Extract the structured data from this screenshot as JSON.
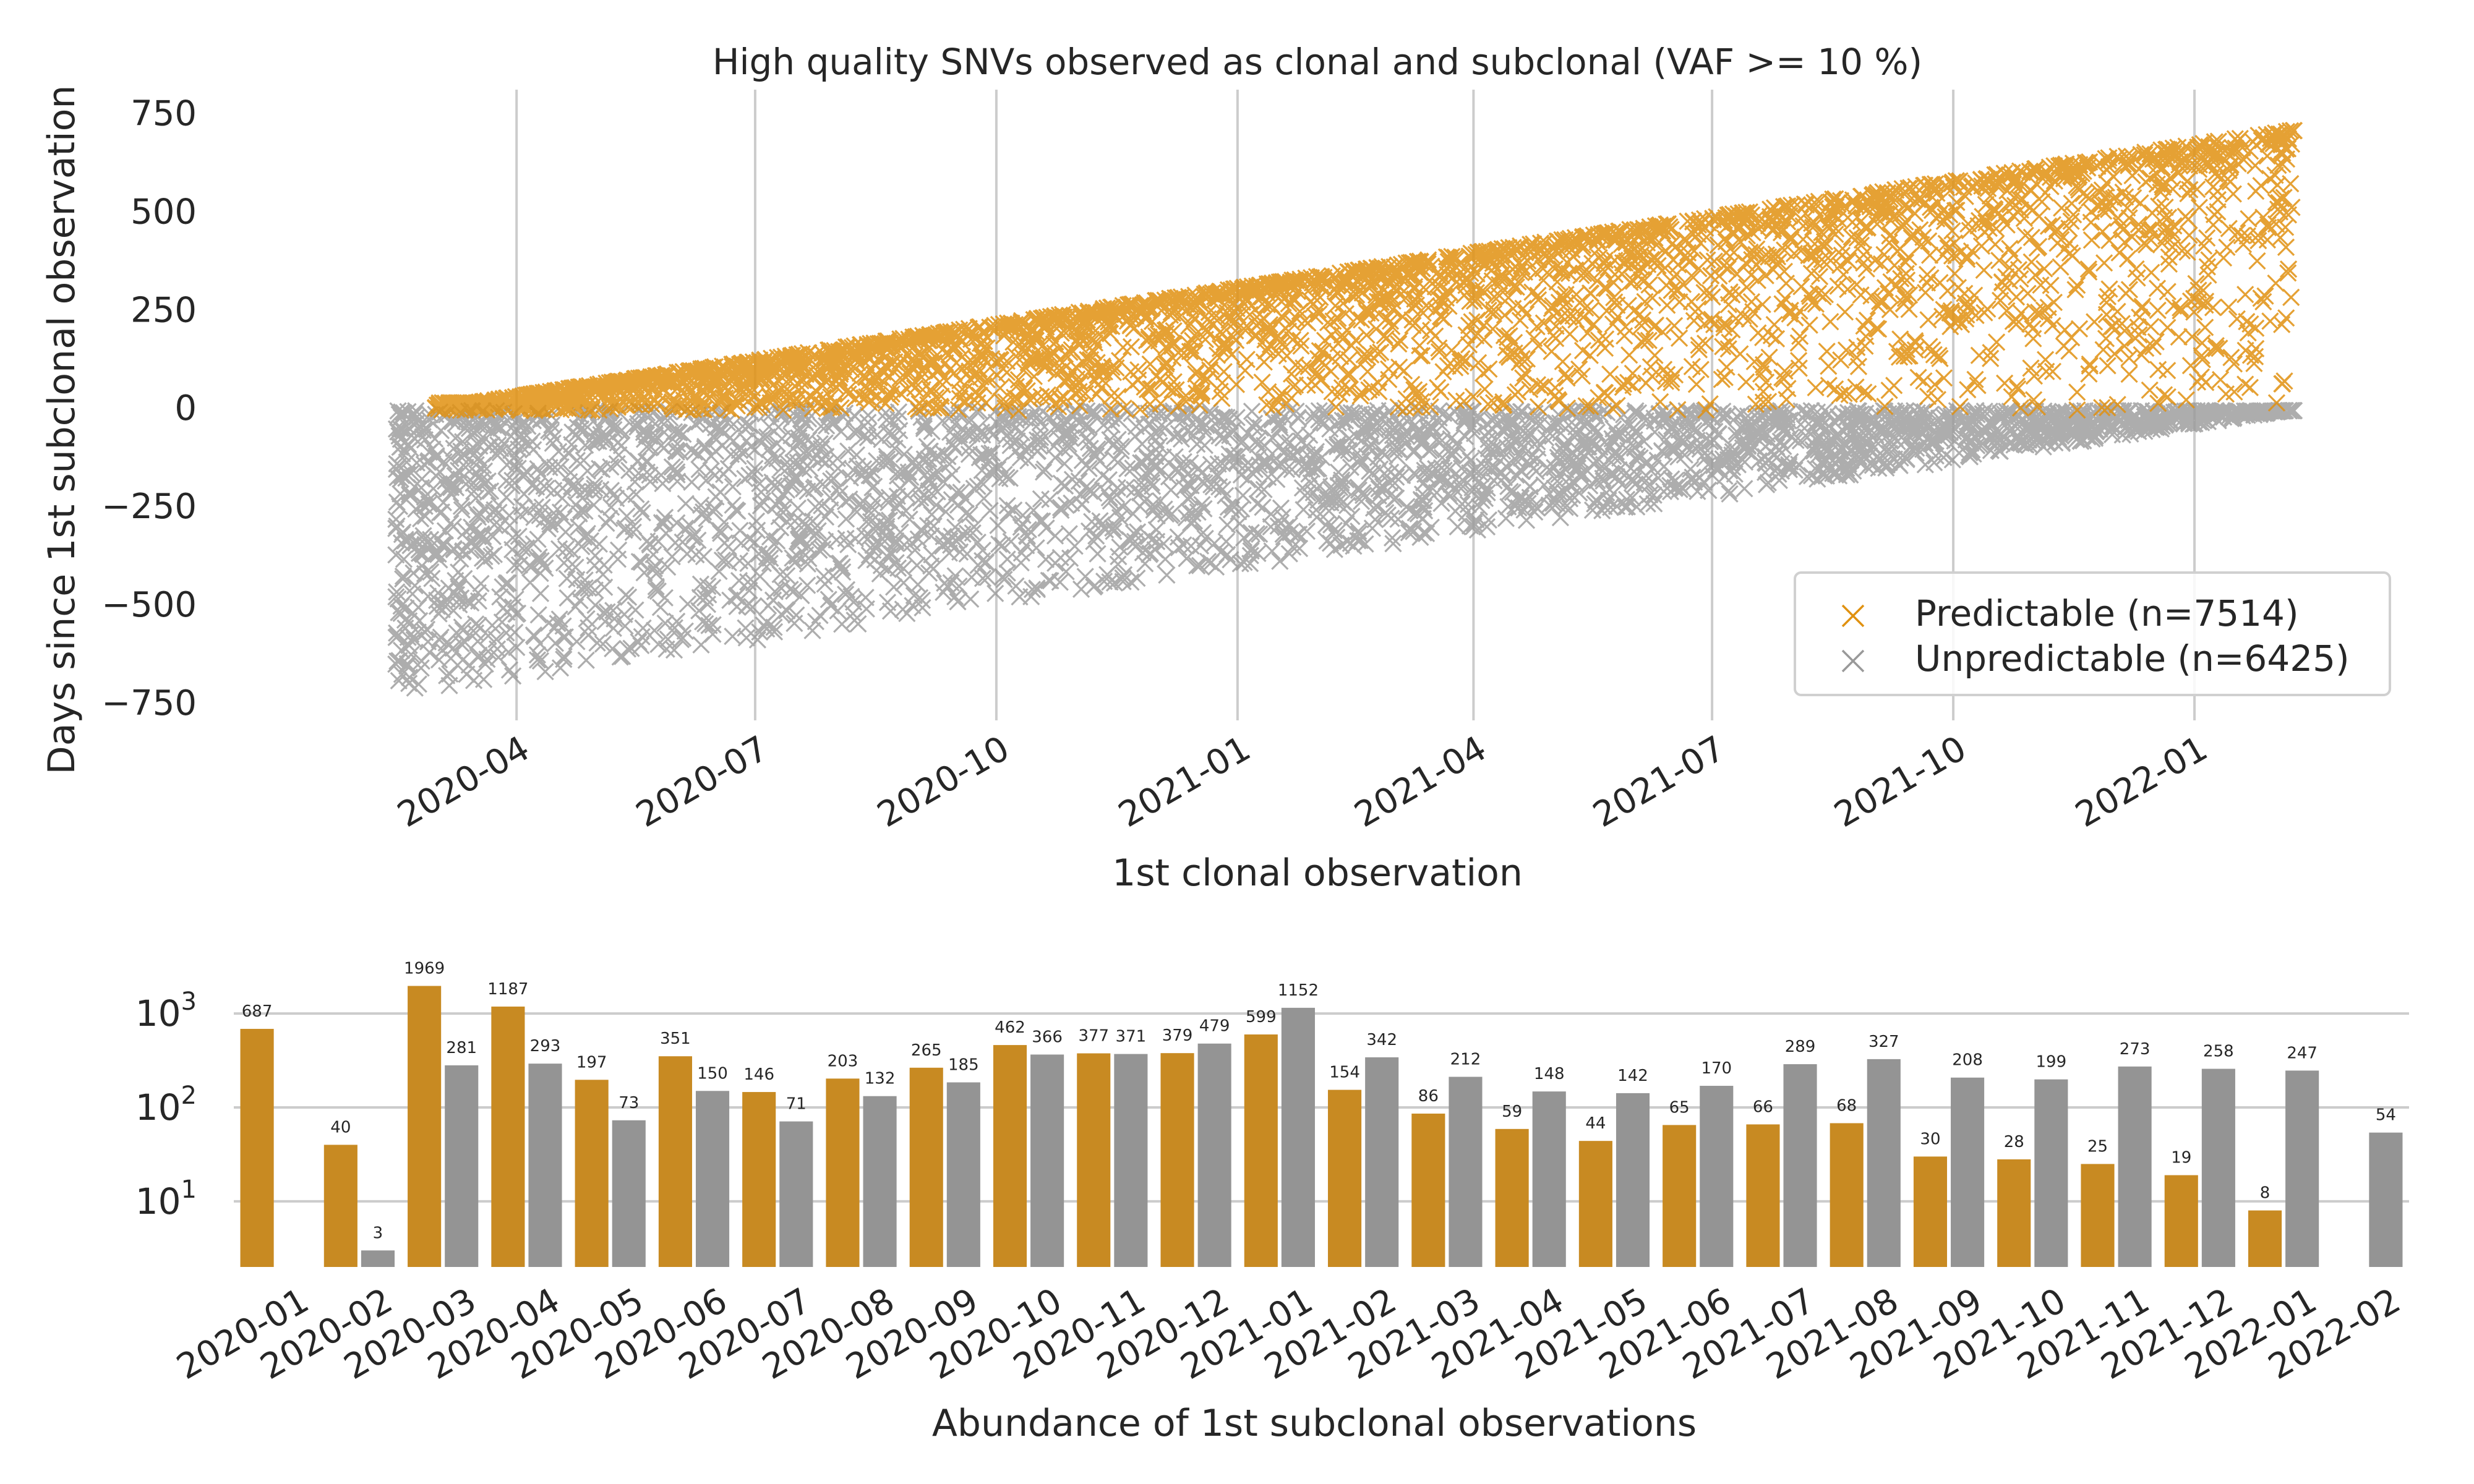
{
  "colors": {
    "predictable_scatter": "#e09110",
    "unpredictable_scatter": "#999999",
    "predictable_bar": "#c88a22",
    "unpredictable_bar": "#949494",
    "grid": "#cccccc",
    "text": "#262626"
  },
  "chart_data": [
    {
      "type": "scatter",
      "title": "High quality SNVs observed as clonal and subclonal (VAF >= 10 %)",
      "xlabel": "1st clonal observation",
      "ylabel": "Days since 1st subclonal observation",
      "x_ticks": [
        "2020-04",
        "2020-07",
        "2020-10",
        "2021-01",
        "2021-04",
        "2021-07",
        "2021-10",
        "2022-01"
      ],
      "y_ticks": [
        750,
        500,
        250,
        0,
        -250,
        -500,
        -750
      ],
      "y_tick_labels": [
        "750",
        "500",
        "250",
        "0",
        "−250",
        "−500",
        "−750"
      ],
      "xlim": [
        "2020-01-20",
        "2022-02-20"
      ],
      "ylim": [
        -780,
        840
      ],
      "marker": "x",
      "grid": "vertical",
      "legend_position": "lower-right",
      "series": [
        {
          "name": "Predictable (n=7514)",
          "color": "#e09110",
          "n": 7514,
          "y_range": "0 to (x - 2020-02-25)",
          "samples": [
            [
              "2020-03-05",
              70
            ],
            [
              "2020-04-15",
              110
            ],
            [
              "2020-07-01",
              190
            ],
            [
              "2020-10-01",
              290
            ],
            [
              "2021-01-01",
              370
            ],
            [
              "2021-04-01",
              440
            ],
            [
              "2021-07-01",
              520
            ],
            [
              "2021-10-01",
              600
            ],
            [
              "2022-01-01",
              700
            ],
            [
              "2022-02-05",
              760
            ]
          ]
        },
        {
          "name": "Unpredictable (n=6425)",
          "color": "#999999",
          "n": 6425,
          "y_range": "-(2022-02-05 - x) to 0",
          "samples": [
            [
              "2020-02-15",
              -180
            ],
            [
              "2020-02-15",
              -490
            ],
            [
              "2020-03-15",
              -650
            ],
            [
              "2020-07-01",
              -420
            ],
            [
              "2020-10-01",
              -400
            ],
            [
              "2021-01-01",
              -380
            ],
            [
              "2021-04-01",
              -260
            ],
            [
              "2021-07-01",
              -150
            ],
            [
              "2021-10-01",
              -100
            ],
            [
              "2022-01-01",
              -10
            ]
          ]
        }
      ]
    },
    {
      "type": "bar",
      "xlabel": "Abundance of 1st subclonal observations",
      "yscale": "log",
      "ylim": [
        2.0,
        4500
      ],
      "y_ticks": [
        10,
        100,
        1000
      ],
      "y_tick_base": "10",
      "y_tick_exponents": [
        "1",
        "2",
        "3"
      ],
      "categories": [
        "2020-01",
        "2020-02",
        "2020-03",
        "2020-04",
        "2020-05",
        "2020-06",
        "2020-07",
        "2020-08",
        "2020-09",
        "2020-10",
        "2020-11",
        "2020-12",
        "2021-01",
        "2021-02",
        "2021-03",
        "2021-04",
        "2021-05",
        "2021-06",
        "2021-07",
        "2021-08",
        "2021-09",
        "2021-10",
        "2021-11",
        "2021-12",
        "2022-01",
        "2022-02"
      ],
      "grid": "horizontal",
      "series": [
        {
          "name": "Predictable",
          "color": "#c88a22",
          "values": [
            687,
            40,
            1969,
            1187,
            197,
            351,
            146,
            203,
            265,
            462,
            377,
            379,
            599,
            154,
            86,
            59,
            44,
            65,
            66,
            68,
            30,
            28,
            25,
            19,
            8,
            null
          ],
          "labels": [
            "687",
            "40",
            "1969",
            "1187",
            "197",
            "351",
            "146",
            "203",
            "265",
            "462",
            "377",
            "379",
            "599",
            "154",
            "86",
            "59",
            "44",
            "65",
            "66",
            "68",
            "30",
            "28",
            "25",
            "19",
            "8",
            ""
          ]
        },
        {
          "name": "Unpredictable",
          "color": "#949494",
          "values": [
            null,
            3,
            281,
            293,
            73,
            150,
            71,
            132,
            185,
            366,
            371,
            479,
            1152,
            342,
            212,
            148,
            142,
            170,
            289,
            327,
            208,
            199,
            273,
            258,
            247,
            54
          ],
          "labels": [
            "",
            "3",
            "281",
            "293",
            "73",
            "150",
            "71",
            "132",
            "185",
            "366",
            "371",
            "479",
            "1152",
            "342",
            "212",
            "148",
            "142",
            "170",
            "289",
            "327",
            "208",
            "199",
            "273",
            "258",
            "247",
            "54"
          ]
        }
      ]
    }
  ]
}
